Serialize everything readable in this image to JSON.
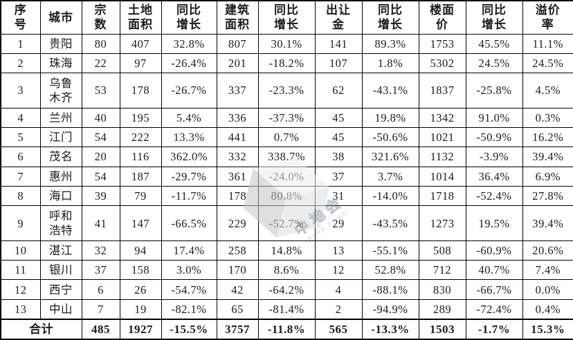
{
  "page": {
    "background": "#ffffff"
  },
  "colors": {
    "border": "#000000",
    "text": "#1b1b1b",
    "watermark": "#8e99a3"
  },
  "watermark": {
    "text": "中地会",
    "subtext": "ZHONG DI HUI"
  },
  "table": {
    "headers": [
      "序\n号",
      "城市",
      "宗\n数",
      "土地\n面积",
      "同比\n增长",
      "建筑\n面积",
      "同比\n增长",
      "出让\n金",
      "同比\n增长",
      "楼面\n价",
      "同比\n增长",
      "溢价\n率"
    ],
    "rows": [
      {
        "no": "1",
        "city": "贵阳",
        "values": [
          "80",
          "407",
          "32.8%",
          "807",
          "30.1%",
          "141",
          "89.3%",
          "1753",
          "45.5%",
          "11.1%"
        ]
      },
      {
        "no": "2",
        "city": "珠海",
        "values": [
          "22",
          "97",
          "-26.4%",
          "201",
          "-18.2%",
          "107",
          "1.8%",
          "5302",
          "24.5%",
          "24.5%"
        ]
      },
      {
        "no": "3",
        "city": "乌鲁\n木齐",
        "values": [
          "53",
          "178",
          "-26.7%",
          "337",
          "-23.3%",
          "62",
          "-43.1%",
          "1837",
          "-25.8%",
          "4.5%"
        ]
      },
      {
        "no": "4",
        "city": "兰州",
        "values": [
          "40",
          "195",
          "5.4%",
          "336",
          "-37.3%",
          "45",
          "19.8%",
          "1342",
          "91.0%",
          "0.3%"
        ]
      },
      {
        "no": "5",
        "city": "江门",
        "values": [
          "54",
          "222",
          "13.3%",
          "441",
          "0.7%",
          "45",
          "-50.6%",
          "1021",
          "-50.9%",
          "16.2%"
        ]
      },
      {
        "no": "6",
        "city": "茂名",
        "values": [
          "20",
          "116",
          "362.0%",
          "332",
          "338.7%",
          "38",
          "321.6%",
          "1132",
          "-3.9%",
          "39.4%"
        ]
      },
      {
        "no": "7",
        "city": "惠州",
        "values": [
          "54",
          "187",
          "-29.7%",
          "361",
          "-24.0%",
          "37",
          "3.7%",
          "1014",
          "36.4%",
          "6.9%"
        ]
      },
      {
        "no": "8",
        "city": "海口",
        "values": [
          "39",
          "79",
          "-11.7%",
          "178",
          "80.8%",
          "31",
          "-14.0%",
          "1718",
          "-52.4%",
          "27.8%"
        ]
      },
      {
        "no": "9",
        "city": "呼和\n浩特",
        "values": [
          "41",
          "147",
          "-66.5%",
          "229",
          "-52.7%",
          "29",
          "-43.5%",
          "1273",
          "19.5%",
          "39.4%"
        ]
      },
      {
        "no": "10",
        "city": "湛江",
        "values": [
          "32",
          "94",
          "17.4%",
          "258",
          "14.8%",
          "13",
          "-55.1%",
          "508",
          "-60.9%",
          "20.6%"
        ]
      },
      {
        "no": "11",
        "city": "银川",
        "values": [
          "37",
          "158",
          "3.0%",
          "170",
          "8.6%",
          "12",
          "52.8%",
          "712",
          "40.7%",
          "7.4%"
        ]
      },
      {
        "no": "12",
        "city": "西宁",
        "values": [
          "6",
          "26",
          "-54.7%",
          "42",
          "-64.2%",
          "4",
          "-88.1%",
          "830",
          "-66.7%",
          "0.0%"
        ]
      },
      {
        "no": "13",
        "city": "中山",
        "values": [
          "7",
          "19",
          "-82.1%",
          "65",
          "-81.4%",
          "2",
          "-94.9%",
          "289",
          "-72.4%",
          "0.4%"
        ]
      }
    ],
    "total": {
      "label": "合计",
      "values": [
        "485",
        "1927",
        "-15.5%",
        "3757",
        "-11.8%",
        "565",
        "-13.3%",
        "1503",
        "-1.7%",
        "15.3%"
      ]
    }
  }
}
